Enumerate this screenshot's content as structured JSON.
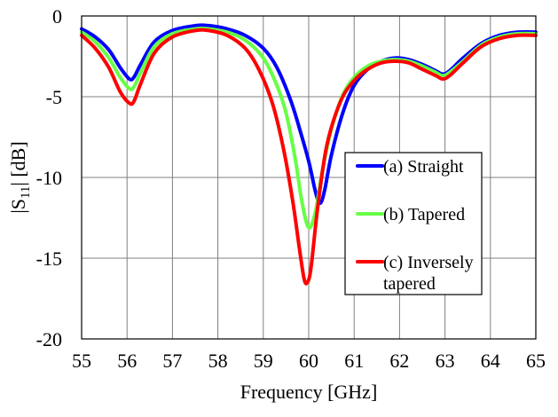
{
  "chart_data": {
    "type": "line",
    "title": "",
    "xlabel": "Frequency [GHz]",
    "ylabel_main": "|S",
    "ylabel_sub": "11",
    "ylabel_tail": "| [dB]",
    "xlim": [
      55,
      65
    ],
    "ylim": [
      -20,
      0
    ],
    "x_ticks": [
      55,
      56,
      57,
      58,
      59,
      60,
      61,
      62,
      63,
      64,
      65
    ],
    "y_ticks": [
      0,
      -5,
      -10,
      -15,
      -20
    ],
    "x_tick_labels": [
      "55",
      "56",
      "57",
      "58",
      "59",
      "60",
      "61",
      "62",
      "63",
      "64",
      "65"
    ],
    "y_tick_labels": [
      "0",
      "-5",
      "-10",
      "-15",
      "-20"
    ],
    "grid": true,
    "legend_position": "right",
    "series": [
      {
        "name": "(a) Straight",
        "legend_lines": [
          "(a) Straight"
        ],
        "color": "#0000ff",
        "x": [
          55,
          55.3,
          55.6,
          55.85,
          56.05,
          56.15,
          56.3,
          56.6,
          57.0,
          57.5,
          57.8,
          58.2,
          58.6,
          59.0,
          59.3,
          59.6,
          59.8,
          60.0,
          60.15,
          60.25,
          60.35,
          60.5,
          60.75,
          61.0,
          61.3,
          61.6,
          61.9,
          62.2,
          62.5,
          62.8,
          62.95,
          63.1,
          63.4,
          63.8,
          64.2,
          64.6,
          65
        ],
        "y": [
          -0.8,
          -1.3,
          -2.1,
          -3.2,
          -3.9,
          -3.8,
          -3.0,
          -1.6,
          -0.9,
          -0.6,
          -0.6,
          -0.8,
          -1.2,
          -2.0,
          -3.2,
          -5.2,
          -7.0,
          -9.0,
          -10.9,
          -11.6,
          -10.8,
          -8.6,
          -6.0,
          -4.3,
          -3.3,
          -2.8,
          -2.6,
          -2.7,
          -3.0,
          -3.4,
          -3.6,
          -3.4,
          -2.6,
          -1.7,
          -1.2,
          -1.0,
          -1.0
        ]
      },
      {
        "name": "(b) Tapered",
        "legend_lines": [
          "(b) Tapered"
        ],
        "color": "#66ff44",
        "x": [
          55,
          55.3,
          55.6,
          55.85,
          56.05,
          56.15,
          56.3,
          56.6,
          57.0,
          57.5,
          57.8,
          58.2,
          58.6,
          59.0,
          59.3,
          59.5,
          59.7,
          59.85,
          60.0,
          60.15,
          60.3,
          60.5,
          60.75,
          61.0,
          61.3,
          61.6,
          61.9,
          62.2,
          62.5,
          62.8,
          62.95,
          63.1,
          63.4,
          63.8,
          64.2,
          64.6,
          65
        ],
        "y": [
          -1.0,
          -1.6,
          -2.6,
          -3.8,
          -4.5,
          -4.4,
          -3.5,
          -1.9,
          -1.1,
          -0.8,
          -0.8,
          -1.0,
          -1.5,
          -2.6,
          -4.3,
          -6.0,
          -8.8,
          -11.5,
          -13.1,
          -12.1,
          -9.6,
          -7.0,
          -4.9,
          -3.8,
          -3.1,
          -2.8,
          -2.7,
          -2.8,
          -3.1,
          -3.5,
          -3.7,
          -3.5,
          -2.8,
          -1.8,
          -1.3,
          -1.1,
          -1.1
        ]
      },
      {
        "name": "(c) Inversely tapered",
        "legend_lines": [
          "(c) Inversely",
          "tapered"
        ],
        "color": "#ff0000",
        "x": [
          55,
          55.3,
          55.6,
          55.85,
          56.05,
          56.15,
          56.3,
          56.6,
          57.0,
          57.5,
          57.8,
          58.2,
          58.6,
          58.9,
          59.2,
          59.45,
          59.65,
          59.8,
          59.9,
          59.97,
          60.05,
          60.2,
          60.4,
          60.7,
          61.0,
          61.3,
          61.6,
          61.9,
          62.2,
          62.5,
          62.8,
          62.95,
          63.1,
          63.4,
          63.8,
          64.2,
          64.6,
          65
        ],
        "y": [
          -1.2,
          -2.0,
          -3.2,
          -4.7,
          -5.4,
          -5.3,
          -4.2,
          -2.3,
          -1.3,
          -0.9,
          -0.9,
          -1.2,
          -2.0,
          -3.3,
          -5.4,
          -8.3,
          -11.5,
          -14.5,
          -16.3,
          -16.5,
          -15.6,
          -11.8,
          -8.0,
          -5.3,
          -4.0,
          -3.3,
          -2.9,
          -2.8,
          -2.9,
          -3.3,
          -3.7,
          -3.9,
          -3.7,
          -2.9,
          -1.9,
          -1.4,
          -1.2,
          -1.2
        ]
      }
    ]
  }
}
